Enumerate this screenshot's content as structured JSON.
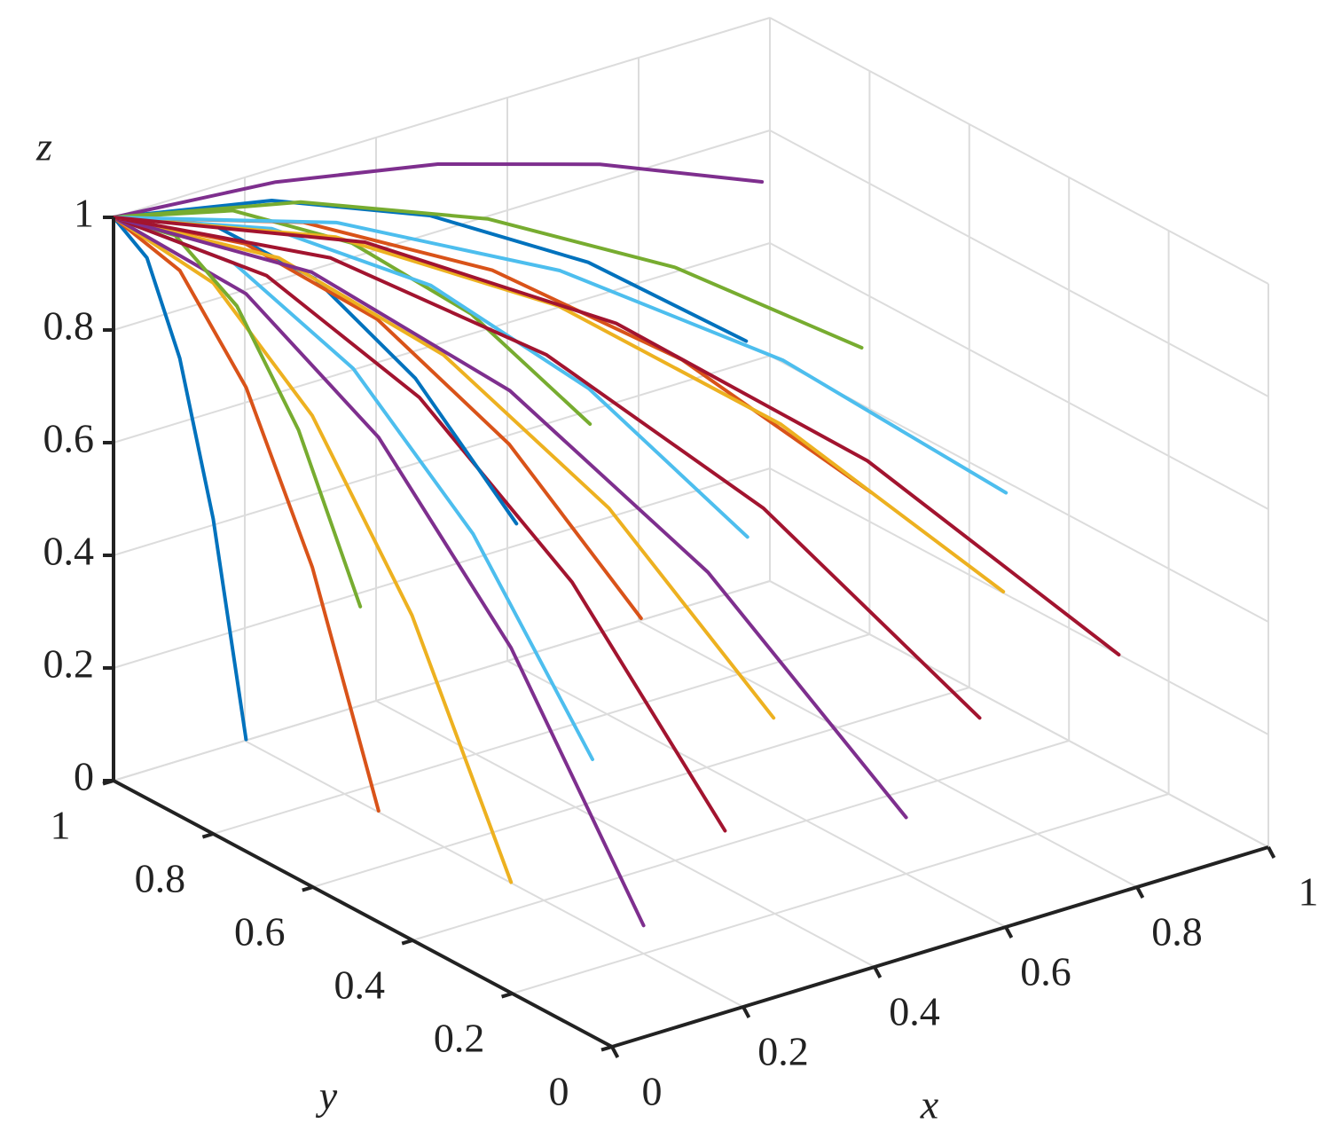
{
  "chart_data": {
    "type": "line3d",
    "xlabel": "x",
    "ylabel": "y",
    "zlabel": "z",
    "xlim": [
      0,
      1
    ],
    "ylim": [
      0,
      1
    ],
    "zlim": [
      0,
      1
    ],
    "xticks": [
      0,
      0.2,
      0.4,
      0.6,
      0.8,
      1
    ],
    "yticks": [
      0,
      0.2,
      0.4,
      0.6,
      0.8,
      1
    ],
    "zticks": [
      0,
      0.2,
      0.4,
      0.6,
      0.8,
      1
    ],
    "grid": true,
    "series": [
      {
        "color": "#0072BD",
        "x": [
          0,
          0.013,
          0.025,
          0.038,
          0.05
        ],
        "y": [
          1,
          0.95,
          0.9,
          0.85,
          0.8
        ],
        "z": [
          1,
          0.947,
          0.788,
          0.522,
          0.15
        ]
      },
      {
        "color": "#D95319",
        "x": [
          0,
          0.025,
          0.05,
          0.075,
          0.1
        ],
        "y": [
          1,
          0.9,
          0.8,
          0.7,
          0.6
        ],
        "z": [
          1,
          0.944,
          0.775,
          0.494,
          0.1
        ]
      },
      {
        "color": "#EDB120",
        "x": [
          0,
          0.038,
          0.075,
          0.113,
          0.15
        ],
        "y": [
          1,
          0.85,
          0.7,
          0.55,
          0.4
        ],
        "z": [
          1,
          0.941,
          0.763,
          0.466,
          0.05
        ]
      },
      {
        "color": "#7E2F8E",
        "x": [
          0,
          0.05,
          0.1,
          0.15,
          0.2
        ],
        "y": [
          1,
          0.8,
          0.6,
          0.4,
          0.2
        ],
        "z": [
          1,
          0.941,
          0.763,
          0.466,
          0.05
        ]
      },
      {
        "color": "#77AC30",
        "x": [
          0,
          0.075,
          0.15,
          0.225,
          0.3
        ],
        "y": [
          1,
          0.975,
          0.95,
          0.925,
          0.9
        ],
        "z": [
          1,
          0.953,
          0.813,
          0.578,
          0.25
        ]
      },
      {
        "color": "#4DBEEE",
        "x": [
          0,
          0.088,
          0.175,
          0.263,
          0.35
        ],
        "y": [
          1,
          0.875,
          0.75,
          0.625,
          0.5
        ],
        "z": [
          1,
          0.947,
          0.788,
          0.522,
          0.15
        ]
      },
      {
        "color": "#A2142F",
        "x": [
          0,
          0.1,
          0.2,
          0.3,
          0.4
        ],
        "y": [
          1,
          0.825,
          0.65,
          0.475,
          0.3
        ],
        "z": [
          1,
          0.944,
          0.775,
          0.494,
          0.1
        ]
      },
      {
        "color": "#0072BD",
        "x": [
          0,
          0.125,
          0.25,
          0.375,
          0.5
        ],
        "y": [
          1,
          0.963,
          0.925,
          0.888,
          0.85
        ],
        "z": [
          1,
          0.959,
          0.838,
          0.634,
          0.35
        ]
      },
      {
        "color": "#D95319",
        "x": [
          0,
          0.125,
          0.25,
          0.375,
          0.5
        ],
        "y": [
          1,
          0.9,
          0.8,
          0.7,
          0.6
        ],
        "z": [
          1,
          0.956,
          0.825,
          0.606,
          0.3
        ]
      },
      {
        "color": "#EDB120",
        "x": [
          0,
          0.138,
          0.275,
          0.413,
          0.55
        ],
        "y": [
          1,
          0.85,
          0.7,
          0.55,
          0.4
        ],
        "z": [
          1,
          0.95,
          0.8,
          0.55,
          0.2
        ]
      },
      {
        "color": "#7E2F8E",
        "x": [
          0,
          0.15,
          0.3,
          0.45,
          0.6
        ],
        "y": [
          1,
          0.8,
          0.6,
          0.4,
          0.2
        ],
        "z": [
          1,
          0.944,
          0.775,
          0.494,
          0.1
        ]
      },
      {
        "color": "#77AC30",
        "x": [
          0,
          0.163,
          0.325,
          0.488,
          0.65
        ],
        "y": [
          1,
          0.975,
          0.95,
          0.925,
          0.9
        ],
        "z": [
          1,
          0.966,
          0.863,
          0.691,
          0.45
        ]
      },
      {
        "color": "#4DBEEE",
        "x": [
          0,
          0.175,
          0.35,
          0.525,
          0.7
        ],
        "y": [
          1,
          0.913,
          0.825,
          0.738,
          0.65
        ],
        "z": [
          1,
          0.959,
          0.838,
          0.634,
          0.35
        ]
      },
      {
        "color": "#A2142F",
        "x": [
          0,
          0.188,
          0.375,
          0.563,
          0.75
        ],
        "y": [
          1,
          0.813,
          0.625,
          0.438,
          0.25
        ],
        "z": [
          1,
          0.95,
          0.8,
          0.55,
          0.2
        ]
      },
      {
        "color": "#0072BD",
        "x": [
          0,
          0.213,
          0.425,
          0.638,
          0.85
        ],
        "y": [
          1,
          0.963,
          0.925,
          0.888,
          0.85
        ],
        "z": [
          1,
          0.972,
          0.888,
          0.747,
          0.55
        ]
      },
      {
        "color": "#D95319",
        "x": [
          0,
          0.213,
          0.425,
          0.638,
          0.85
        ],
        "y": [
          1,
          0.9,
          0.8,
          0.7,
          0.6
        ],
        "z": [
          1,
          0.963,
          0.85,
          0.663,
          0.4
        ]
      },
      {
        "color": "#EDB120",
        "x": [
          0,
          0.225,
          0.45,
          0.675,
          0.9
        ],
        "y": [
          1,
          0.85,
          0.7,
          0.55,
          0.4
        ],
        "z": [
          1,
          0.956,
          0.825,
          0.606,
          0.3
        ]
      },
      {
        "color": "#7E2F8E",
        "x": [
          0,
          0.238,
          0.475,
          0.713,
          0.95
        ],
        "y": [
          1,
          0.988,
          0.975,
          0.963,
          0.95
        ],
        "z": [
          1,
          0.984,
          0.938,
          0.859,
          0.75
        ]
      },
      {
        "color": "#77AC30",
        "x": [
          0,
          0.238,
          0.475,
          0.713,
          0.95
        ],
        "y": [
          1,
          0.938,
          0.875,
          0.813,
          0.75
        ],
        "z": [
          1,
          0.972,
          0.888,
          0.747,
          0.55
        ]
      },
      {
        "color": "#4DBEEE",
        "x": [
          0,
          0.245,
          0.49,
          0.735,
          0.98
        ],
        "y": [
          1,
          0.875,
          0.75,
          0.625,
          0.5
        ],
        "z": [
          1,
          0.963,
          0.85,
          0.663,
          0.4
        ]
      },
      {
        "color": "#A2142F",
        "x": [
          0,
          0.25,
          0.5,
          0.75,
          1
        ],
        "y": [
          1,
          0.825,
          0.65,
          0.475,
          0.3
        ],
        "z": [
          1,
          0.95,
          0.8,
          0.55,
          0.2
        ]
      }
    ]
  }
}
